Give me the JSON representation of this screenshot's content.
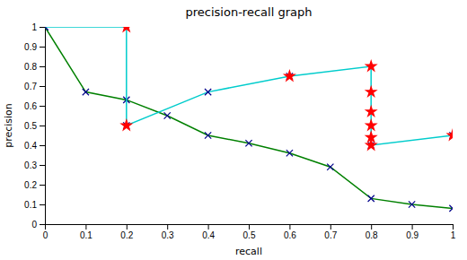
{
  "chart_data": {
    "type": "line",
    "title": "precision-recall graph",
    "x_label": "recall",
    "y_label": "precision",
    "xlim": [
      0,
      1
    ],
    "ylim": [
      0,
      1
    ],
    "xticks": [
      0,
      0.1,
      0.2,
      0.3,
      0.4,
      0.5,
      0.6,
      0.7,
      0.8,
      0.9,
      1
    ],
    "yticks": [
      0,
      0.1,
      0.2,
      0.3,
      0.4,
      0.5,
      0.6,
      0.7,
      0.8,
      0.9,
      1
    ],
    "grid": false,
    "series": [
      {
        "type": "line",
        "color": "#008000",
        "x": [
          0,
          0.1,
          0.2,
          0.3,
          0.4,
          0.5,
          0.6,
          0.7,
          0.8,
          0.9,
          1.0
        ],
        "values": [
          1.0,
          0.67,
          0.63,
          0.55,
          0.45,
          0.41,
          0.36,
          0.29,
          0.13,
          0.1,
          0.08
        ]
      },
      {
        "type": "scatter",
        "marker": "x",
        "color": "#00008B",
        "x": [
          0,
          0.1,
          0.2,
          0.3,
          0.4,
          0.5,
          0.6,
          0.7,
          0.8,
          0.9,
          1.0
        ],
        "values": [
          1.0,
          0.67,
          0.63,
          0.55,
          0.45,
          0.41,
          0.36,
          0.29,
          0.13,
          0.1,
          0.08
        ]
      },
      {
        "type": "line",
        "color": "#00CCCC",
        "x": [
          0,
          0.2,
          0.2,
          0.4,
          0.6,
          0.8,
          0.8,
          1.0
        ],
        "values": [
          1.0,
          1.0,
          0.5,
          0.67,
          0.75,
          0.8,
          0.4,
          0.45
        ]
      },
      {
        "type": "scatter",
        "marker": "x",
        "color": "#00008B",
        "x": [
          0,
          0.2,
          0.4,
          0.6,
          0.8,
          1.0
        ],
        "values": [
          1.0,
          0.5,
          0.67,
          0.75,
          0.4,
          0.45
        ]
      },
      {
        "type": "scatter",
        "marker": "star",
        "color": "red",
        "x": [
          0.2,
          0.2,
          0.8,
          0.8,
          0.8,
          0.8,
          0.8,
          0.8,
          0.6,
          1.0
        ],
        "values": [
          1.0,
          0.5,
          0.8,
          0.67,
          0.57,
          0.5,
          0.44,
          0.4,
          0.75,
          0.45
        ]
      }
    ]
  }
}
